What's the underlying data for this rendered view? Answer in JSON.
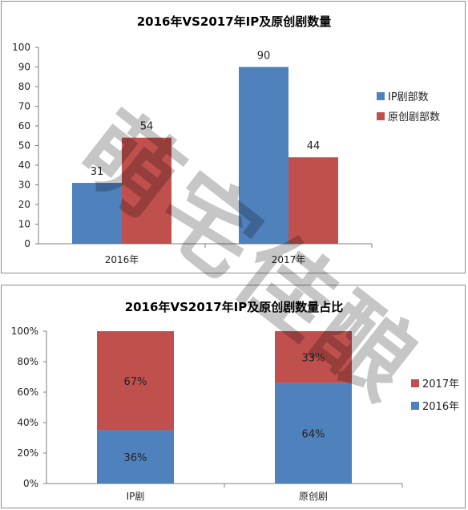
{
  "colors": {
    "blue": "#4f81bd",
    "red": "#c0504d",
    "axis": "#7f7f7f"
  },
  "watermark": {
    "text": "萌宅佳酿"
  },
  "chart_data": [
    {
      "type": "bar",
      "title": "2016年VS2017年IP及原创剧数量",
      "categories": [
        "2016年",
        "2017年"
      ],
      "series": [
        {
          "name": "IP剧部数",
          "values": [
            31,
            90
          ]
        },
        {
          "name": "原创剧部数",
          "values": [
            54,
            44
          ]
        }
      ],
      "ylim": [
        0,
        100
      ],
      "yticks": [
        0,
        10,
        20,
        30,
        40,
        50,
        60,
        70,
        80,
        90,
        100
      ],
      "legend": "right",
      "grid": false
    },
    {
      "type": "bar",
      "stacked": true,
      "title": "2016年VS2017年IP及原创剧数量占比",
      "categories": [
        "IP剧",
        "原创剧"
      ],
      "series": [
        {
          "name": "2016年",
          "values": [
            36,
            64
          ],
          "labels": [
            "36%",
            "64%"
          ]
        },
        {
          "name": "2017年",
          "values": [
            67,
            33
          ],
          "labels": [
            "67%",
            "33%"
          ]
        }
      ],
      "ylim": [
        0,
        100
      ],
      "yticks": [
        "0%",
        "20%",
        "40%",
        "60%",
        "80%",
        "100%"
      ],
      "legend": "right",
      "grid": false
    }
  ]
}
